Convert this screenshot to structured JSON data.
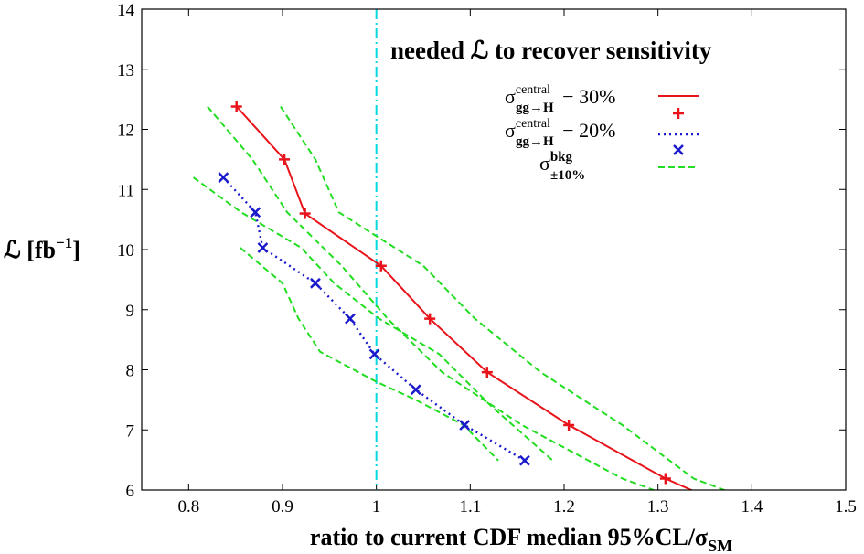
{
  "chart_data": {
    "type": "line",
    "title": "needed ℒ to recover sensitivity",
    "xlabel": "ratio to current CDF median 95%CL/σ",
    "xlabel_sub": "SM",
    "ylabel": "ℒ [fb",
    "ylabel_sup": "−1",
    "ylabel_close": "]",
    "xlim": [
      0.75,
      1.5
    ],
    "ylim": [
      6,
      14
    ],
    "xticks": [
      "0.8",
      "0.9",
      "1",
      "1.1",
      "1.2",
      "1.3",
      "1.4",
      "1.5"
    ],
    "yticks": [
      "6",
      "7",
      "8",
      "9",
      "10",
      "11",
      "12",
      "13",
      "14"
    ],
    "reference_line_x": 1.0,
    "legend_position": "top-right",
    "legend": {
      "entry1": {
        "sym": "σ",
        "sup": "central",
        "sub": "gg→H",
        "suffix": " − 30%"
      },
      "entry2": {
        "sym": "σ",
        "sup": "central",
        "sub": "gg→H",
        "suffix": " − 20%"
      },
      "entry3": {
        "sym": "σ",
        "sup": "bkg",
        "sub": "±10%"
      }
    },
    "series": [
      {
        "key": "minus30",
        "color": "#e8141b",
        "marker": "plus",
        "dash": "solid",
        "x": [
          0.851,
          0.902,
          0.924,
          1.005,
          1.057,
          1.118,
          1.205,
          1.308,
          1.35
        ],
        "y": [
          12.38,
          11.5,
          10.6,
          9.73,
          8.85,
          7.96,
          7.08,
          6.19,
          5.9
        ]
      },
      {
        "key": "minus20",
        "color": "#1a1acc",
        "marker": "x",
        "dash": "dotted",
        "x": [
          0.837,
          0.871,
          0.879,
          0.935,
          0.972,
          0.998,
          1.042,
          1.094,
          1.158
        ],
        "y": [
          11.2,
          10.62,
          10.03,
          9.44,
          8.85,
          8.26,
          7.67,
          7.08,
          6.49
        ]
      },
      {
        "key": "bkg_a_high",
        "color": "#22dd22",
        "marker": "none",
        "dash": "dashed",
        "x": [
          0.898,
          0.935,
          0.96,
          1.05,
          1.105,
          1.175,
          1.262,
          1.338,
          1.388
        ],
        "y": [
          12.38,
          11.5,
          10.62,
          9.73,
          8.85,
          7.96,
          7.08,
          6.19,
          5.9
        ]
      },
      {
        "key": "bkg_a_low",
        "color": "#22dd22",
        "marker": "none",
        "dash": "dashed",
        "x": [
          0.82,
          0.868,
          0.905,
          0.963,
          1.012,
          1.07,
          1.155,
          1.262,
          1.313
        ],
        "y": [
          12.38,
          11.5,
          10.62,
          9.73,
          8.85,
          7.96,
          7.08,
          6.19,
          5.9
        ]
      },
      {
        "key": "bkg_b_high",
        "color": "#22dd22",
        "marker": "none",
        "dash": "dashed",
        "x": [
          0.805,
          0.856,
          0.92,
          0.955,
          1.003,
          1.067,
          1.122,
          1.188
        ],
        "y": [
          11.2,
          10.62,
          10.03,
          9.44,
          8.85,
          8.26,
          7.4,
          6.49
        ]
      },
      {
        "key": "bkg_b_low",
        "color": "#22dd22",
        "marker": "none",
        "dash": "dashed",
        "x": [
          0.855,
          0.9,
          0.917,
          0.94,
          1.0,
          1.042,
          1.093,
          1.13
        ],
        "y": [
          10.03,
          9.44,
          8.85,
          8.3,
          7.8,
          7.5,
          7.08,
          6.49
        ]
      }
    ]
  }
}
